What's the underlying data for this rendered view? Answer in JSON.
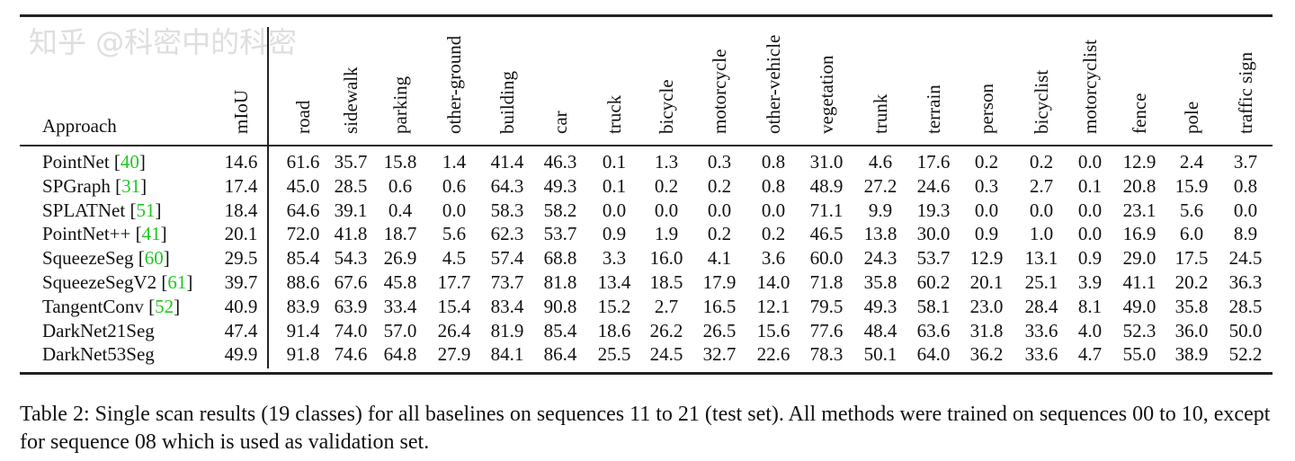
{
  "table": {
    "approach_header": "Approach",
    "columns": [
      "mIoU",
      "road",
      "sidewalk",
      "parking",
      "other-ground",
      "building",
      "car",
      "truck",
      "bicycle",
      "motorcycle",
      "other-vehicle",
      "vegetation",
      "trunk",
      "terrain",
      "person",
      "bicyclist",
      "motorcyclist",
      "fence",
      "pole",
      "traffic sign"
    ],
    "rows": [
      {
        "name": "PointNet",
        "cite": "40",
        "values": [
          "14.6",
          "61.6",
          "35.7",
          "15.8",
          "1.4",
          "41.4",
          "46.3",
          "0.1",
          "1.3",
          "0.3",
          "0.8",
          "31.0",
          "4.6",
          "17.6",
          "0.2",
          "0.2",
          "0.0",
          "12.9",
          "2.4",
          "3.7"
        ]
      },
      {
        "name": "SPGraph",
        "cite": "31",
        "values": [
          "17.4",
          "45.0",
          "28.5",
          "0.6",
          "0.6",
          "64.3",
          "49.3",
          "0.1",
          "0.2",
          "0.2",
          "0.8",
          "48.9",
          "27.2",
          "24.6",
          "0.3",
          "2.7",
          "0.1",
          "20.8",
          "15.9",
          "0.8"
        ]
      },
      {
        "name": "SPLATNet",
        "cite": "51",
        "values": [
          "18.4",
          "64.6",
          "39.1",
          "0.4",
          "0.0",
          "58.3",
          "58.2",
          "0.0",
          "0.0",
          "0.0",
          "0.0",
          "71.1",
          "9.9",
          "19.3",
          "0.0",
          "0.0",
          "0.0",
          "23.1",
          "5.6",
          "0.0"
        ]
      },
      {
        "name": "PointNet++",
        "cite": "41",
        "values": [
          "20.1",
          "72.0",
          "41.8",
          "18.7",
          "5.6",
          "62.3",
          "53.7",
          "0.9",
          "1.9",
          "0.2",
          "0.2",
          "46.5",
          "13.8",
          "30.0",
          "0.9",
          "1.0",
          "0.0",
          "16.9",
          "6.0",
          "8.9"
        ]
      },
      {
        "name": "SqueezeSeg",
        "cite": "60",
        "values": [
          "29.5",
          "85.4",
          "54.3",
          "26.9",
          "4.5",
          "57.4",
          "68.8",
          "3.3",
          "16.0",
          "4.1",
          "3.6",
          "60.0",
          "24.3",
          "53.7",
          "12.9",
          "13.1",
          "0.9",
          "29.0",
          "17.5",
          "24.5"
        ]
      },
      {
        "name": "SqueezeSegV2",
        "cite": "61",
        "values": [
          "39.7",
          "88.6",
          "67.6",
          "45.8",
          "17.7",
          "73.7",
          "81.8",
          "13.4",
          "18.5",
          "17.9",
          "14.0",
          "71.8",
          "35.8",
          "60.2",
          "20.1",
          "25.1",
          "3.9",
          "41.1",
          "20.2",
          "36.3"
        ]
      },
      {
        "name": "TangentConv",
        "cite": "52",
        "values": [
          "40.9",
          "83.9",
          "63.9",
          "33.4",
          "15.4",
          "83.4",
          "90.8",
          "15.2",
          "2.7",
          "16.5",
          "12.1",
          "79.5",
          "49.3",
          "58.1",
          "23.0",
          "28.4",
          "8.1",
          "49.0",
          "35.8",
          "28.5"
        ]
      },
      {
        "name": "DarkNet21Seg",
        "cite": null,
        "values": [
          "47.4",
          "91.4",
          "74.0",
          "57.0",
          "26.4",
          "81.9",
          "85.4",
          "18.6",
          "26.2",
          "26.5",
          "15.6",
          "77.6",
          "48.4",
          "63.6",
          "31.8",
          "33.6",
          "4.0",
          "52.3",
          "36.0",
          "50.0"
        ]
      },
      {
        "name": "DarkNet53Seg",
        "cite": null,
        "values": [
          "49.9",
          "91.8",
          "74.6",
          "64.8",
          "27.9",
          "84.1",
          "86.4",
          "25.5",
          "24.5",
          "32.7",
          "22.6",
          "78.3",
          "50.1",
          "64.0",
          "36.2",
          "33.6",
          "4.7",
          "55.0",
          "38.9",
          "52.2"
        ]
      }
    ]
  },
  "caption": "Table 2: Single scan results (19 classes) for all baselines on sequences 11 to 21 (test set). All methods were trained on sequences 00 to 10, except for sequence 08 which is used as validation set.",
  "watermark": "知乎 @科密中的科密",
  "colors": {
    "citation": "#1ec81e"
  }
}
